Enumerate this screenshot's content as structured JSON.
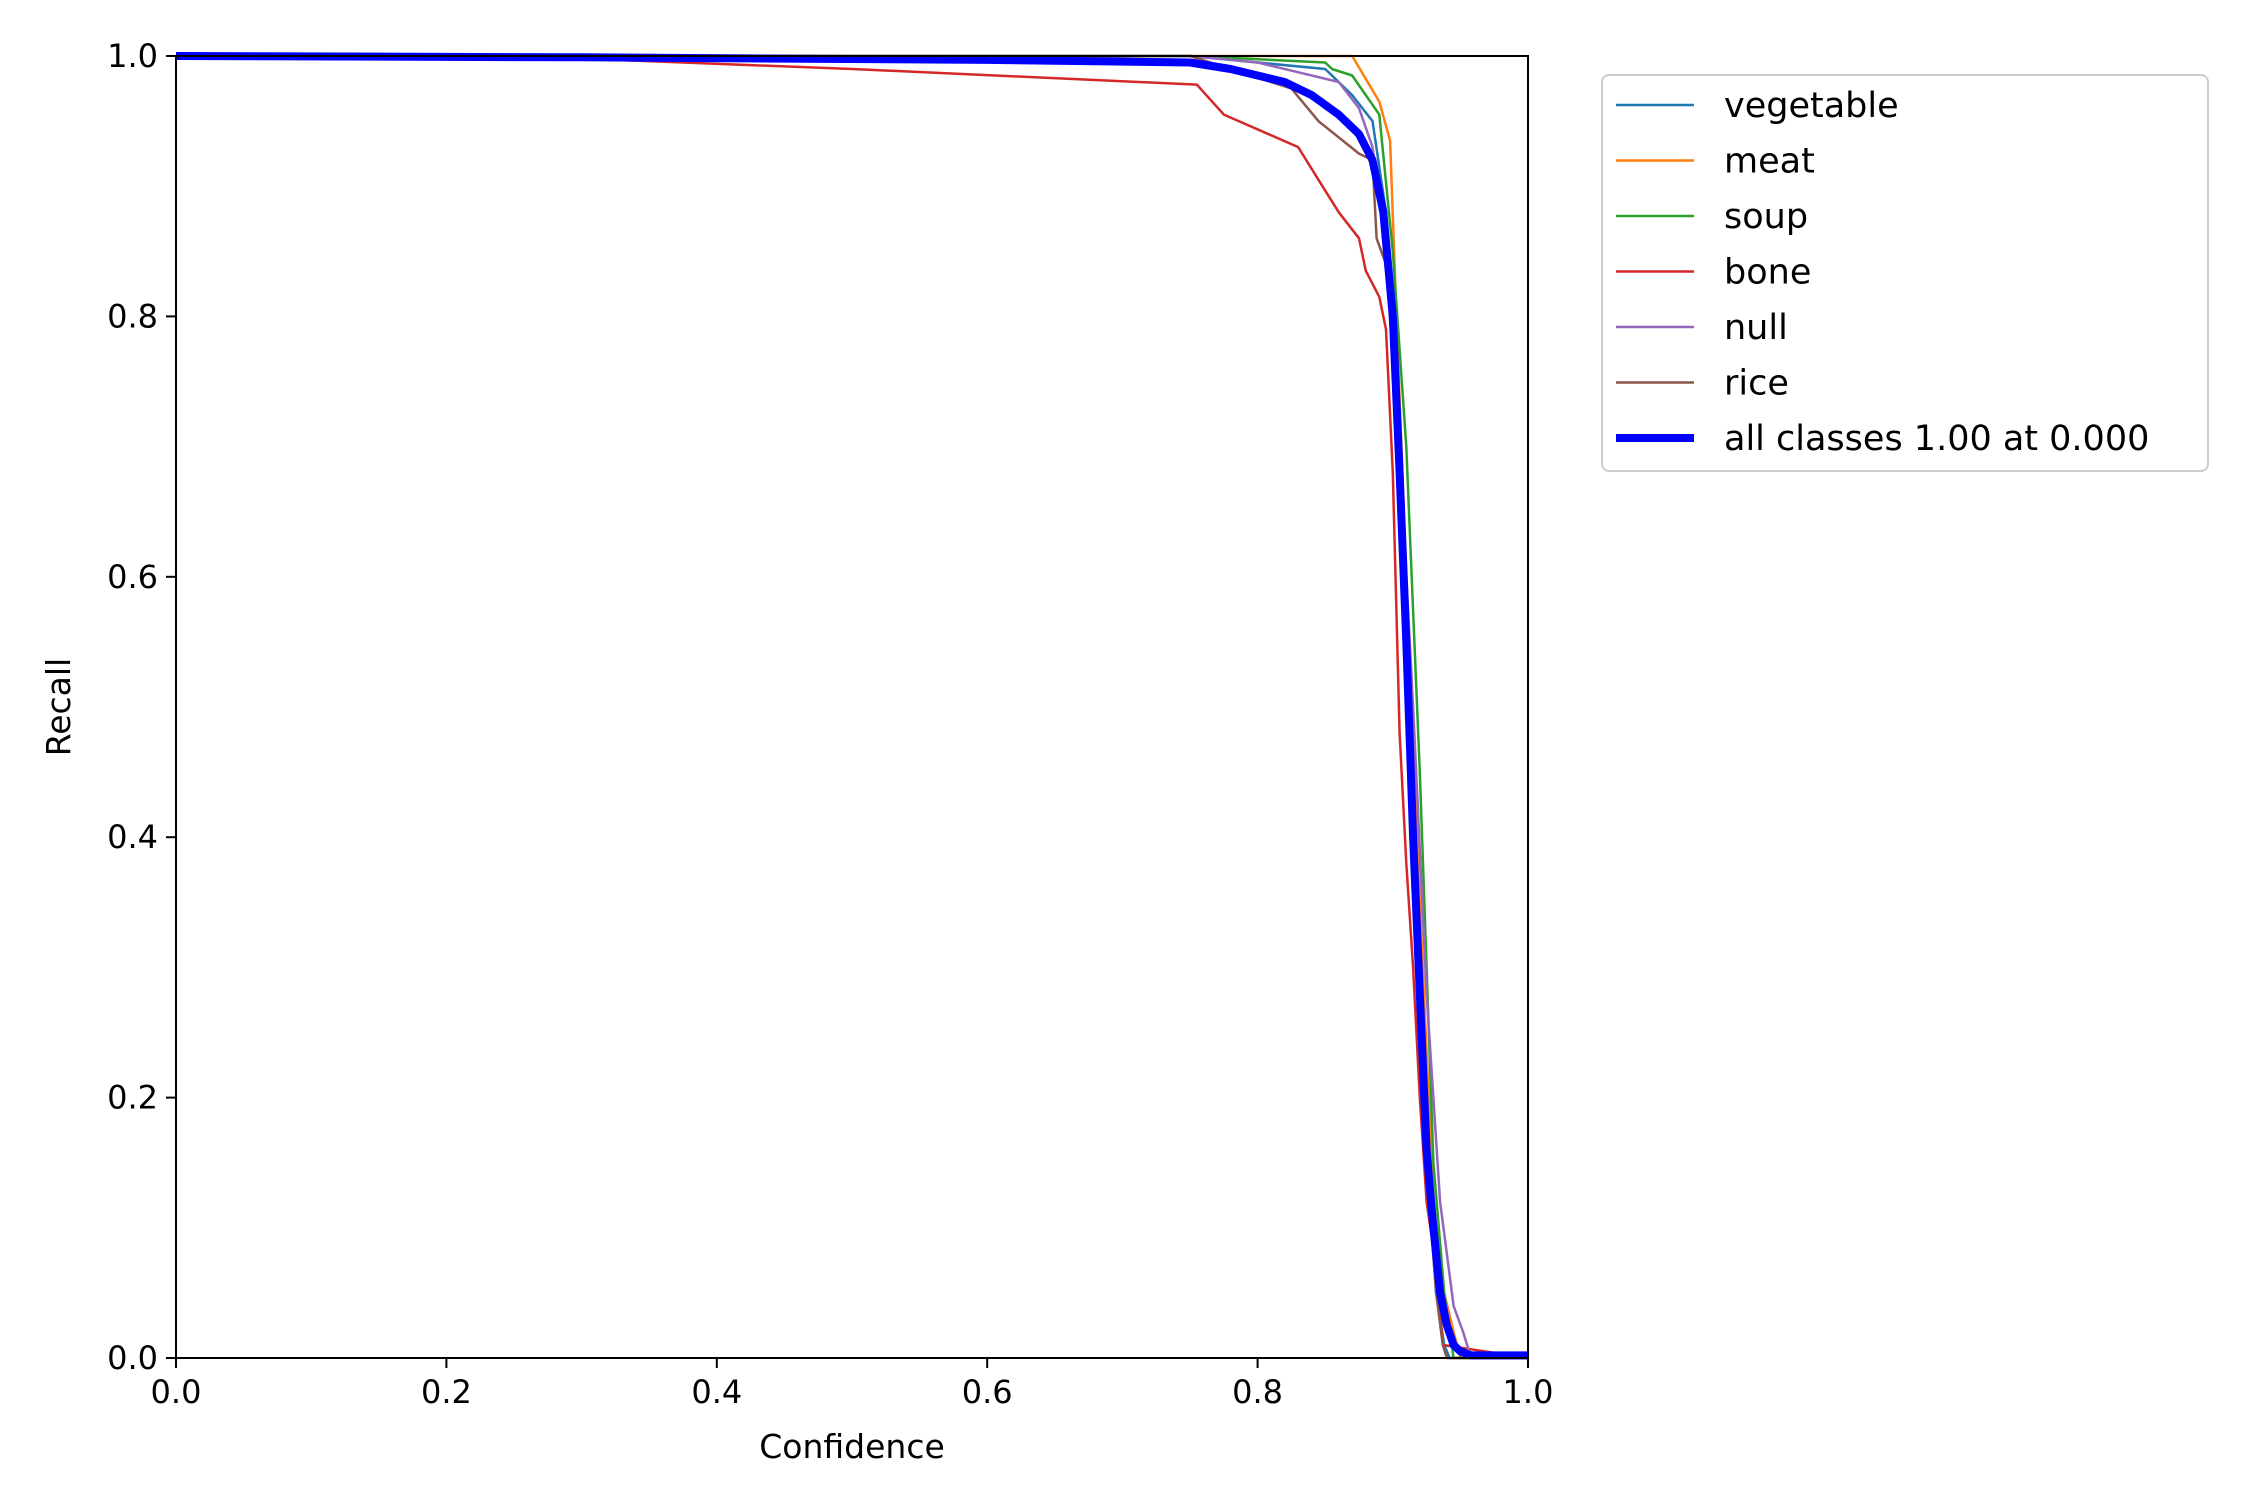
{
  "chart_data": {
    "type": "line",
    "title": "",
    "xlabel": "Confidence",
    "ylabel": "Recall",
    "xlim": [
      0.0,
      1.0
    ],
    "ylim": [
      0.0,
      1.0
    ],
    "xticks": [
      "0.0",
      "0.2",
      "0.4",
      "0.6",
      "0.8",
      "1.0"
    ],
    "yticks": [
      "0.0",
      "0.2",
      "0.4",
      "0.6",
      "0.8",
      "1.0"
    ],
    "grid": false,
    "legend_position": "outside-top-right",
    "series": [
      {
        "name": "vegetable",
        "color": "#1f77b4",
        "x": [
          0.0,
          0.5,
          0.75,
          0.85,
          0.87,
          0.885,
          0.895,
          0.905,
          0.915,
          0.925,
          0.932,
          0.938,
          0.942,
          1.0
        ],
        "y": [
          1.0,
          1.0,
          1.0,
          0.99,
          0.97,
          0.95,
          0.88,
          0.72,
          0.45,
          0.15,
          0.05,
          0.01,
          0.0,
          0.0
        ]
      },
      {
        "name": "meat",
        "color": "#ff7f0e",
        "x": [
          0.0,
          0.5,
          0.8,
          0.87,
          0.89,
          0.898,
          0.902,
          0.91,
          0.92,
          0.93,
          0.938,
          0.945,
          0.95,
          1.0
        ],
        "y": [
          1.0,
          1.0,
          1.0,
          1.0,
          0.965,
          0.935,
          0.82,
          0.6,
          0.35,
          0.12,
          0.05,
          0.02,
          0.0,
          0.0
        ]
      },
      {
        "name": "soup",
        "color": "#2ca02c",
        "x": [
          0.0,
          0.5,
          0.75,
          0.85,
          0.855,
          0.87,
          0.88,
          0.89,
          0.9,
          0.91,
          0.92,
          0.93,
          0.938,
          0.945,
          1.0
        ],
        "y": [
          1.0,
          1.0,
          1.0,
          0.995,
          0.99,
          0.985,
          0.97,
          0.955,
          0.85,
          0.7,
          0.45,
          0.15,
          0.05,
          0.0,
          0.0
        ]
      },
      {
        "name": "bone",
        "color": "#d62728",
        "x": [
          0.0,
          0.25,
          0.5,
          0.755,
          0.775,
          0.83,
          0.845,
          0.86,
          0.875,
          0.88,
          0.89,
          0.895,
          0.9,
          0.905,
          0.91,
          0.915,
          0.92,
          0.925,
          0.932,
          0.937,
          1.0
        ],
        "y": [
          1.0,
          1.0,
          0.99,
          0.978,
          0.955,
          0.93,
          0.905,
          0.88,
          0.86,
          0.835,
          0.815,
          0.79,
          0.68,
          0.48,
          0.38,
          0.3,
          0.2,
          0.12,
          0.07,
          0.01,
          0.0
        ]
      },
      {
        "name": "null",
        "color": "#9467bd",
        "x": [
          0.0,
          0.5,
          0.75,
          0.8,
          0.86,
          0.875,
          0.885,
          0.895,
          0.905,
          0.915,
          0.925,
          0.935,
          0.945,
          0.952,
          0.958,
          1.0
        ],
        "y": [
          1.0,
          1.0,
          1.0,
          0.995,
          0.98,
          0.96,
          0.93,
          0.85,
          0.7,
          0.5,
          0.28,
          0.12,
          0.04,
          0.02,
          0.0,
          0.0
        ]
      },
      {
        "name": "rice",
        "color": "#8c564b",
        "x": [
          0.0,
          0.5,
          0.75,
          0.825,
          0.845,
          0.875,
          0.885,
          0.888,
          0.895,
          0.905,
          0.915,
          0.925,
          0.932,
          0.937,
          0.94,
          1.0
        ],
        "y": [
          1.0,
          1.0,
          1.0,
          0.975,
          0.95,
          0.925,
          0.92,
          0.86,
          0.84,
          0.7,
          0.45,
          0.15,
          0.05,
          0.01,
          0.0,
          0.0
        ]
      },
      {
        "name": "all classes 1.00 at 0.000",
        "color": "#0000ff",
        "thick": true,
        "x": [
          0.0,
          0.3,
          0.6,
          0.75,
          0.78,
          0.8,
          0.82,
          0.84,
          0.86,
          0.875,
          0.885,
          0.893,
          0.9,
          0.905,
          0.91,
          0.915,
          0.92,
          0.925,
          0.93,
          0.935,
          0.94,
          0.945,
          0.95,
          0.958,
          1.0
        ],
        "y": [
          1.0,
          0.999,
          0.997,
          0.995,
          0.99,
          0.985,
          0.98,
          0.97,
          0.955,
          0.94,
          0.92,
          0.88,
          0.8,
          0.68,
          0.55,
          0.4,
          0.28,
          0.16,
          0.1,
          0.05,
          0.025,
          0.01,
          0.005,
          0.002,
          0.002
        ]
      }
    ]
  }
}
